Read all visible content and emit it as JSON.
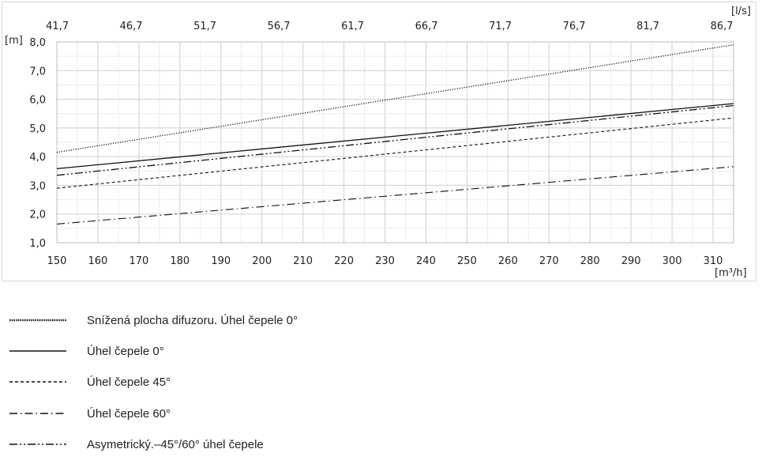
{
  "chart_data": {
    "type": "line",
    "x_unit": "[m³/h]",
    "x2_unit": "[l/s]",
    "y_unit": "[m]",
    "xlim": [
      150,
      315
    ],
    "ylim": [
      1.0,
      8.0
    ],
    "x_ticks": [
      "150",
      "160",
      "170",
      "180",
      "190",
      "200",
      "210",
      "220",
      "230",
      "240",
      "250",
      "260",
      "270",
      "280",
      "290",
      "300",
      "310"
    ],
    "x2_ticks": [
      "41,7",
      "46,7",
      "51,7",
      "56,7",
      "61,7",
      "66,7",
      "71,7",
      "76,7",
      "81,7",
      "86,7"
    ],
    "y_ticks": [
      "1,0",
      "2,0",
      "3,0",
      "4,0",
      "5,0",
      "6,0",
      "7,0",
      "8,0"
    ],
    "grid": true,
    "series": [
      {
        "name": "Snížená plocha difuzoru. Úhel čepele 0°",
        "dash": "dotted",
        "x": [
          150,
          315
        ],
        "y": [
          4.15,
          7.9
        ]
      },
      {
        "name": "Úhel čepele 0°",
        "dash": "solid",
        "x": [
          150,
          315
        ],
        "y": [
          3.58,
          5.85
        ]
      },
      {
        "name": "Úhel čepele 45°",
        "dash": "dashed",
        "x": [
          150,
          315
        ],
        "y": [
          2.9,
          5.35
        ]
      },
      {
        "name": "Úhel čepele 60°",
        "dash": "dashdot",
        "x": [
          150,
          315
        ],
        "y": [
          1.65,
          3.65
        ]
      },
      {
        "name": "Asymetrický.–45°/60° úhel čepele",
        "dash": "dashdotdot",
        "x": [
          150,
          315
        ],
        "y": [
          3.35,
          5.78
        ]
      }
    ]
  }
}
